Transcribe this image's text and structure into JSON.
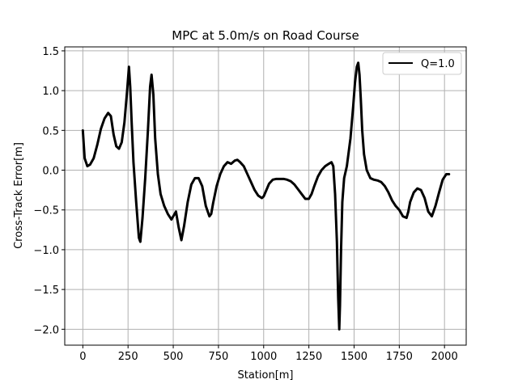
{
  "chart_data": {
    "type": "line",
    "title": "MPC at 5.0m/s on Road Course",
    "xlabel": "Station[m]",
    "ylabel": "Cross-Track Error[m]",
    "xlim": [
      -100,
      2120
    ],
    "ylim": [
      -2.2,
      1.55
    ],
    "xticks": [
      0,
      250,
      500,
      750,
      1000,
      1250,
      1500,
      1750,
      2000
    ],
    "xtick_labels": [
      "0",
      "250",
      "500",
      "750",
      "1000",
      "1250",
      "1500",
      "1750",
      "2000"
    ],
    "yticks": [
      1.5,
      1.0,
      0.5,
      0.0,
      -0.5,
      -1.0,
      -1.5,
      -2.0
    ],
    "ytick_labels": [
      "1.5",
      "1.0",
      "0.5",
      "0.0",
      "−0.5",
      "−1.0",
      "−1.5",
      "−2.0"
    ],
    "grid": true,
    "legend_position": "top-right",
    "series": [
      {
        "name": "Q=1.0",
        "color": "#000000",
        "x": [
          0,
          10,
          25,
          40,
          60,
          80,
          100,
          120,
          140,
          155,
          170,
          185,
          200,
          215,
          230,
          245,
          255,
          262,
          270,
          280,
          295,
          310,
          318,
          330,
          345,
          360,
          372,
          380,
          390,
          400,
          415,
          430,
          450,
          470,
          490,
          500,
          515,
          530,
          545,
          560,
          580,
          600,
          620,
          640,
          660,
          680,
          700,
          710,
          720,
          740,
          760,
          780,
          800,
          820,
          840,
          855,
          870,
          890,
          910,
          930,
          950,
          970,
          990,
          1000,
          1015,
          1030,
          1050,
          1070,
          1090,
          1110,
          1130,
          1150,
          1170,
          1190,
          1210,
          1230,
          1250,
          1265,
          1280,
          1300,
          1320,
          1340,
          1360,
          1375,
          1385,
          1395,
          1405,
          1412,
          1418,
          1422,
          1428,
          1435,
          1445,
          1460,
          1480,
          1495,
          1505,
          1515,
          1523,
          1530,
          1537,
          1545,
          1555,
          1570,
          1590,
          1610,
          1630,
          1650,
          1670,
          1690,
          1710,
          1730,
          1750,
          1770,
          1790,
          1800,
          1810,
          1830,
          1850,
          1870,
          1890,
          1910,
          1930,
          1950,
          1970,
          1990,
          2010,
          2025
        ],
        "y": [
          0.5,
          0.15,
          0.05,
          0.07,
          0.15,
          0.32,
          0.52,
          0.65,
          0.72,
          0.68,
          0.45,
          0.3,
          0.27,
          0.35,
          0.6,
          1.0,
          1.3,
          1.05,
          0.6,
          0.1,
          -0.4,
          -0.85,
          -0.9,
          -0.6,
          -0.1,
          0.5,
          1.05,
          1.2,
          0.95,
          0.4,
          -0.05,
          -0.3,
          -0.45,
          -0.55,
          -0.62,
          -0.58,
          -0.52,
          -0.72,
          -0.88,
          -0.7,
          -0.4,
          -0.18,
          -0.1,
          -0.1,
          -0.2,
          -0.45,
          -0.58,
          -0.55,
          -0.42,
          -0.2,
          -0.05,
          0.05,
          0.1,
          0.08,
          0.12,
          0.13,
          0.1,
          0.05,
          -0.05,
          -0.15,
          -0.25,
          -0.32,
          -0.35,
          -0.33,
          -0.25,
          -0.17,
          -0.12,
          -0.11,
          -0.11,
          -0.11,
          -0.12,
          -0.14,
          -0.18,
          -0.24,
          -0.3,
          -0.36,
          -0.36,
          -0.3,
          -0.2,
          -0.08,
          0.0,
          0.05,
          0.08,
          0.1,
          0.05,
          -0.3,
          -0.9,
          -1.6,
          -2.0,
          -1.7,
          -1.0,
          -0.4,
          -0.1,
          0.05,
          0.4,
          0.8,
          1.1,
          1.3,
          1.35,
          1.2,
          0.9,
          0.5,
          0.2,
          0.0,
          -0.1,
          -0.12,
          -0.13,
          -0.15,
          -0.2,
          -0.28,
          -0.38,
          -0.45,
          -0.5,
          -0.58,
          -0.6,
          -0.52,
          -0.4,
          -0.28,
          -0.23,
          -0.25,
          -0.35,
          -0.52,
          -0.58,
          -0.45,
          -0.28,
          -0.12,
          -0.05,
          -0.05
        ]
      }
    ]
  }
}
